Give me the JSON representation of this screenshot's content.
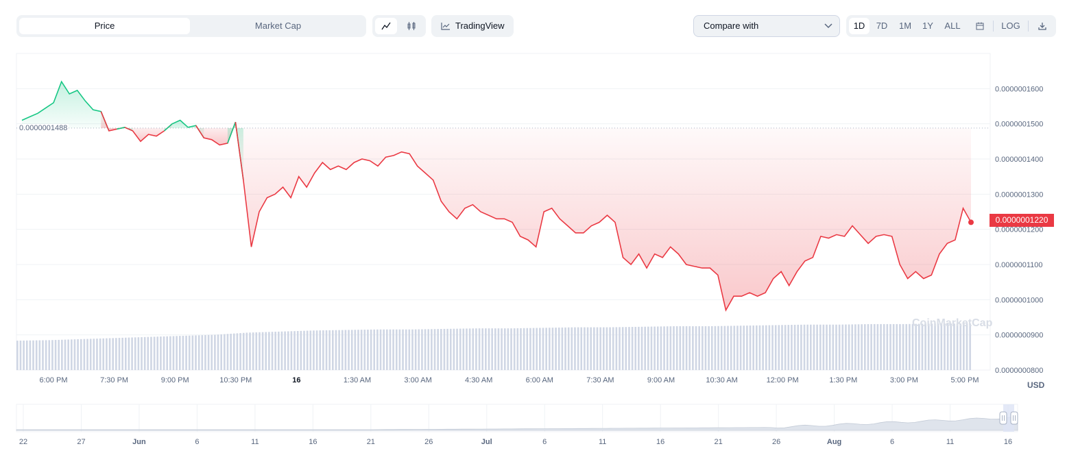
{
  "toolbar": {
    "tabs": [
      {
        "label": "Price",
        "active": true
      },
      {
        "label": "Market Cap",
        "active": false
      }
    ],
    "chart_type_icons": [
      "line-chart-icon",
      "candlestick-icon"
    ],
    "tradingview_label": "TradingView",
    "compare_label": "Compare with",
    "ranges": [
      "1D",
      "7D",
      "1M",
      "1Y",
      "ALL"
    ],
    "active_range": "1D",
    "log_label": "LOG",
    "icons": [
      "calendar-icon",
      "download-icon"
    ]
  },
  "price_tag": "0.0000001220",
  "prev_close_tag": "0.0000001488",
  "watermark": "CoinMarketCap",
  "currency": "USD",
  "colors": {
    "up": "#16c784",
    "down": "#ea3943",
    "volume": "#cfd6e4",
    "grid": "#eff2f5",
    "text": "#58667e"
  },
  "chart_data": {
    "type": "line",
    "y_ticks": [
      "0.0000001600",
      "0.0000001500",
      "0.0000001400",
      "0.0000001300",
      "0.0000001200",
      "0.0000001100",
      "0.0000001000",
      "0.0000000900",
      "0.0000000800"
    ],
    "x_ticks": [
      "6:00 PM",
      "7:30 PM",
      "9:00 PM",
      "10:30 PM",
      "16",
      "1:30 AM",
      "3:00 AM",
      "4:30 AM",
      "6:00 AM",
      "7:30 AM",
      "9:00 AM",
      "10:30 AM",
      "12:00 PM",
      "1:30 PM",
      "3:00 PM",
      "5:00 PM"
    ],
    "ylim": [
      8e-08,
      1.7e-07
    ],
    "reference_value": 1.488e-07,
    "series": [
      {
        "values": [
          1.51e-07,
          1.52e-07,
          1.53e-07,
          1.545e-07,
          1.56e-07,
          1.62e-07,
          1.585e-07,
          1.595e-07,
          1.565e-07,
          1.54e-07,
          1.535e-07,
          1.48e-07,
          1.485e-07,
          1.49e-07,
          1.48e-07,
          1.45e-07,
          1.47e-07,
          1.465e-07,
          1.48e-07,
          1.5e-07,
          1.51e-07,
          1.49e-07,
          1.495e-07,
          1.46e-07,
          1.455e-07,
          1.44e-07,
          1.445e-07,
          1.505e-07,
          1.34e-07,
          1.15e-07,
          1.25e-07,
          1.29e-07,
          1.3e-07,
          1.32e-07,
          1.29e-07,
          1.35e-07,
          1.32e-07,
          1.36e-07,
          1.39e-07,
          1.37e-07,
          1.38e-07,
          1.37e-07,
          1.39e-07,
          1.4e-07,
          1.395e-07,
          1.38e-07,
          1.405e-07,
          1.41e-07,
          1.42e-07,
          1.415e-07,
          1.38e-07,
          1.36e-07,
          1.34e-07,
          1.28e-07,
          1.25e-07,
          1.23e-07,
          1.26e-07,
          1.27e-07,
          1.25e-07,
          1.24e-07,
          1.23e-07,
          1.23e-07,
          1.22e-07,
          1.18e-07,
          1.17e-07,
          1.15e-07,
          1.25e-07,
          1.26e-07,
          1.23e-07,
          1.21e-07,
          1.19e-07,
          1.19e-07,
          1.21e-07,
          1.22e-07,
          1.24e-07,
          1.22e-07,
          1.12e-07,
          1.1e-07,
          1.13e-07,
          1.09e-07,
          1.13e-07,
          1.12e-07,
          1.15e-07,
          1.13e-07,
          1.1e-07,
          1.095e-07,
          1.09e-07,
          1.09e-07,
          1.07e-07,
          9.7e-08,
          1.01e-07,
          1.01e-07,
          1.02e-07,
          1.01e-07,
          1.02e-07,
          1.06e-07,
          1.08e-07,
          1.04e-07,
          1.08e-07,
          1.11e-07,
          1.12e-07,
          1.18e-07,
          1.175e-07,
          1.185e-07,
          1.18e-07,
          1.21e-07,
          1.185e-07,
          1.16e-07,
          1.18e-07,
          1.185e-07,
          1.18e-07,
          1.1e-07,
          1.06e-07,
          1.08e-07,
          1.06e-07,
          1.07e-07,
          1.13e-07,
          1.16e-07,
          1.17e-07,
          1.26e-07,
          1.22e-07
        ]
      }
    ],
    "volume_levels": [
      0.55,
      0.56,
      0.58,
      0.6,
      0.62,
      0.64,
      0.66,
      0.7,
      0.72,
      0.74,
      0.75,
      0.76,
      0.76,
      0.77,
      0.78,
      0.78,
      0.79,
      0.8,
      0.8,
      0.81,
      0.82,
      0.82,
      0.83,
      0.84,
      0.85,
      0.85,
      0.86,
      0.86,
      0.87,
      0.87
    ]
  },
  "navigator": {
    "x_ticks": [
      "22",
      "27",
      "Jun",
      "6",
      "11",
      "16",
      "21",
      "26",
      "Jul",
      "6",
      "11",
      "16",
      "21",
      "26",
      "Aug",
      "6",
      "11",
      "16"
    ]
  }
}
